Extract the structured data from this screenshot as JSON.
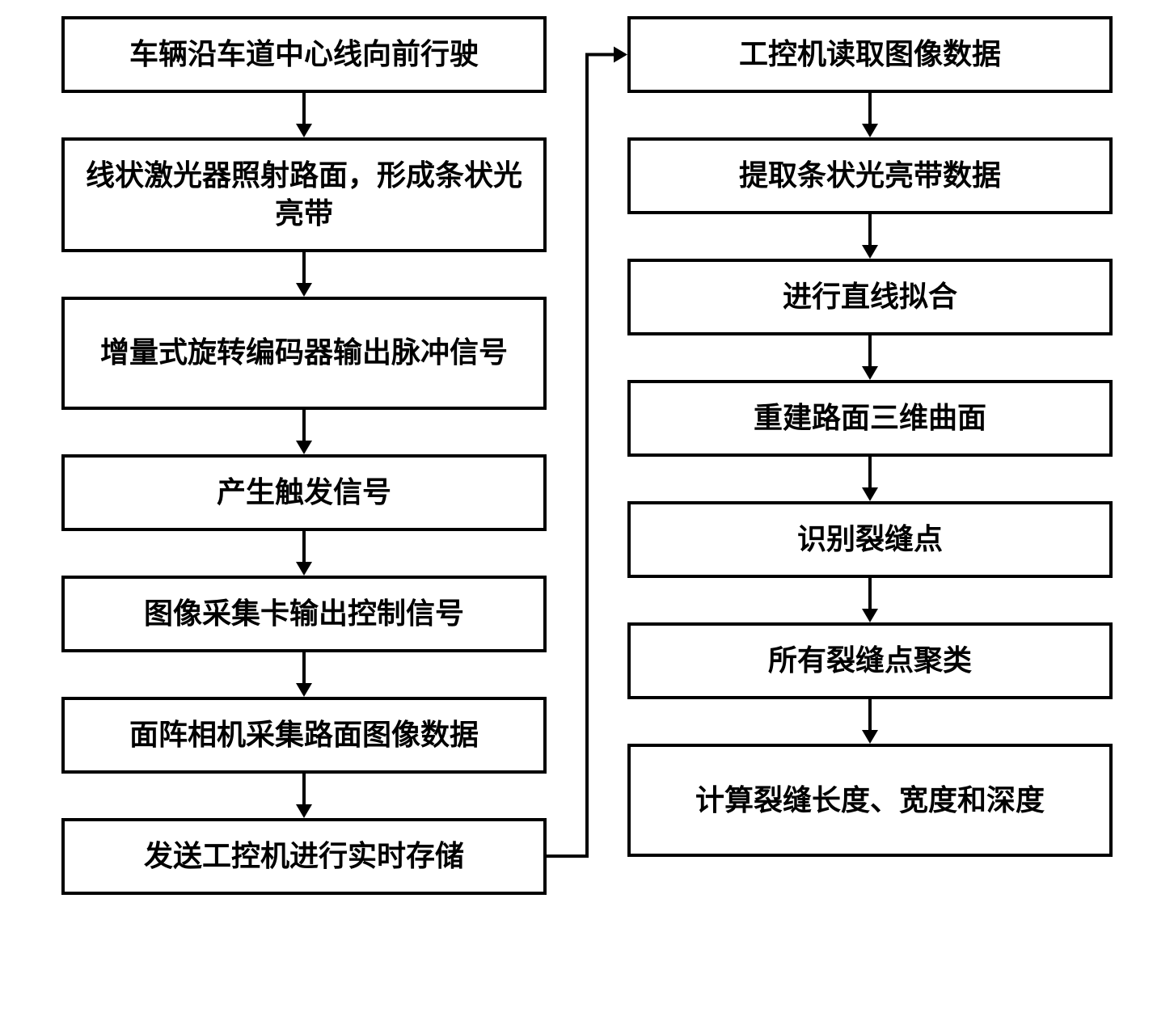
{
  "flowchart": {
    "type": "flowchart",
    "background_color": "#ffffff",
    "node_border_color": "#000000",
    "node_border_width": 4,
    "arrow_color": "#000000",
    "arrow_width": 4,
    "font_weight": 900,
    "font_size_pt": 27,
    "left_column": {
      "nodes": [
        {
          "id": "l1",
          "label": "车辆沿车道中心线向前行驶"
        },
        {
          "id": "l2",
          "label": "线状激光器照射路面，形成条状光亮带"
        },
        {
          "id": "l3",
          "label": "增量式旋转编码器输出脉冲信号"
        },
        {
          "id": "l4",
          "label": "产生触发信号"
        },
        {
          "id": "l5",
          "label": "图像采集卡输出控制信号"
        },
        {
          "id": "l6",
          "label": "面阵相机采集路面图像数据"
        },
        {
          "id": "l7",
          "label": "发送工控机进行实时存储"
        }
      ]
    },
    "right_column": {
      "nodes": [
        {
          "id": "r1",
          "label": "工控机读取图像数据"
        },
        {
          "id": "r2",
          "label": "提取条状光亮带数据"
        },
        {
          "id": "r3",
          "label": "进行直线拟合"
        },
        {
          "id": "r4",
          "label": "重建路面三维曲面"
        },
        {
          "id": "r5",
          "label": "识别裂缝点"
        },
        {
          "id": "r6",
          "label": "所有裂缝点聚类"
        },
        {
          "id": "r7",
          "label": "计算裂缝长度、宽度和深度"
        }
      ]
    },
    "edges": [
      {
        "from": "l1",
        "to": "l2"
      },
      {
        "from": "l2",
        "to": "l3"
      },
      {
        "from": "l3",
        "to": "l4"
      },
      {
        "from": "l4",
        "to": "l5"
      },
      {
        "from": "l5",
        "to": "l6"
      },
      {
        "from": "l6",
        "to": "l7"
      },
      {
        "from": "l7",
        "to": "r1"
      },
      {
        "from": "r1",
        "to": "r2"
      },
      {
        "from": "r2",
        "to": "r3"
      },
      {
        "from": "r3",
        "to": "r4"
      },
      {
        "from": "r4",
        "to": "r5"
      },
      {
        "from": "r5",
        "to": "r6"
      },
      {
        "from": "r6",
        "to": "r7"
      }
    ]
  }
}
